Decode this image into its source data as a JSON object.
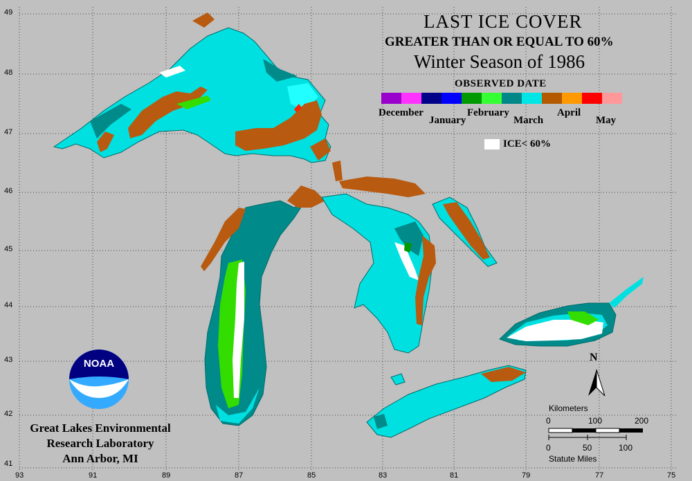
{
  "title": {
    "line1": "LAST ICE COVER",
    "line2": "GREATER THAN OR EQUAL TO 60%",
    "line3": "Winter Season of 1986"
  },
  "legend": {
    "heading": "OBSERVED DATE",
    "months": [
      "December",
      "January",
      "February",
      "March",
      "April",
      "May"
    ],
    "colors": [
      "#9900cc",
      "#ff33ff",
      "#000088",
      "#0000ff",
      "#009900",
      "#33ff33",
      "#008888",
      "#00e6e6",
      "#b35900",
      "#ff9900",
      "#ff0000",
      "#ff9999"
    ],
    "ice_low_label": "ICE< 60%",
    "ice_low_color": "#ffffff"
  },
  "axes": {
    "lat_labels": [
      "49",
      "48",
      "47",
      "46",
      "45",
      "44",
      "43",
      "42",
      "41"
    ],
    "lon_labels": [
      "93",
      "91",
      "89",
      "87",
      "85",
      "83",
      "81",
      "79",
      "77",
      "75"
    ]
  },
  "north_arrow": "N",
  "scalebar": {
    "km_title": "Kilometers",
    "km_ticks": [
      "0",
      "100",
      "200"
    ],
    "mile_ticks": [
      "0",
      "50",
      "100"
    ],
    "mile_title": "Statute Miles"
  },
  "organization": {
    "logo_text": "NOAA",
    "line1": "Great Lakes Environmental",
    "line2": "Research Laboratory",
    "line3": "Ann Arbor, MI"
  },
  "colors": {
    "background": "#c0c0c0",
    "late_march": "#00e0e0",
    "early_march": "#008a8a",
    "april": "#b85a10",
    "late_february": "#33dd00",
    "no_ice": "#ffffff"
  }
}
